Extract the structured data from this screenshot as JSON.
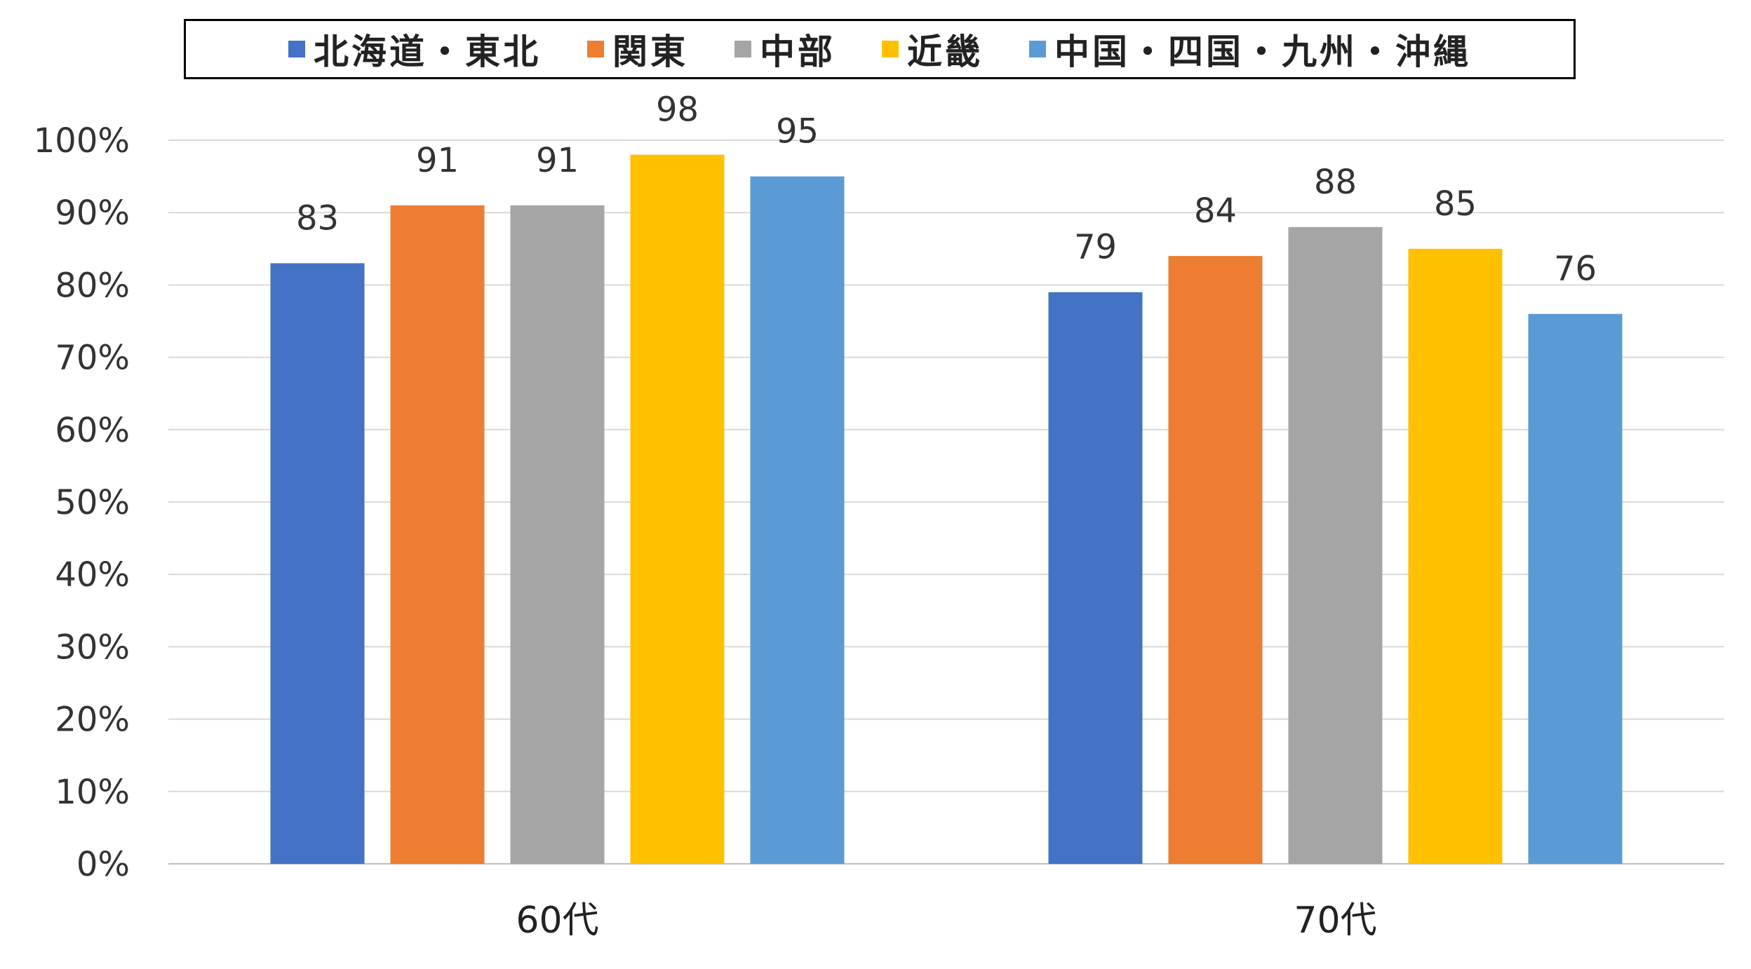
{
  "chart_data": {
    "type": "bar",
    "categories": [
      "60代",
      "70代"
    ],
    "series": [
      {
        "name": "北海道・東北",
        "color": "#4472C4",
        "values": [
          83,
          79
        ]
      },
      {
        "name": "関東",
        "color": "#ED7D31",
        "values": [
          91,
          84
        ]
      },
      {
        "name": "中部",
        "color": "#A5A5A5",
        "values": [
          91,
          88
        ]
      },
      {
        "name": "近畿",
        "color": "#FFC000",
        "values": [
          98,
          85
        ]
      },
      {
        "name": "中国・四国・九州・沖縄",
        "color": "#5B9BD5",
        "values": [
          95,
          76
        ]
      }
    ],
    "yticks": [
      "0%",
      "10%",
      "20%",
      "30%",
      "40%",
      "50%",
      "60%",
      "70%",
      "80%",
      "90%",
      "100%"
    ],
    "ylim": [
      0,
      100
    ],
    "ystep": 10,
    "grid": true,
    "legend_position": "top",
    "data_labels": true
  }
}
